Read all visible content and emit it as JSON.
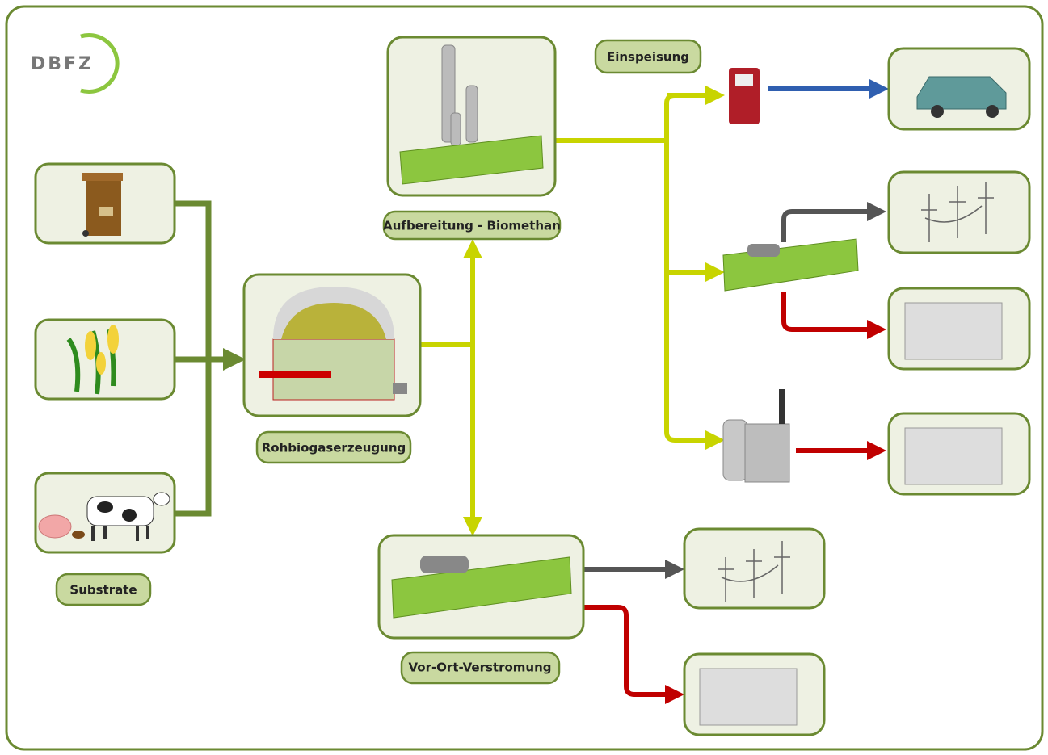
{
  "logo": "DBFZ",
  "labels": {
    "substrate": "Substrate",
    "raw_biogas": "Rohbiogaserzeugung",
    "upgrading": "Aufbereitung - Biomethan",
    "injection": "Einspeisung",
    "onsite_power": "Vor-Ort-Verstromung"
  }
}
